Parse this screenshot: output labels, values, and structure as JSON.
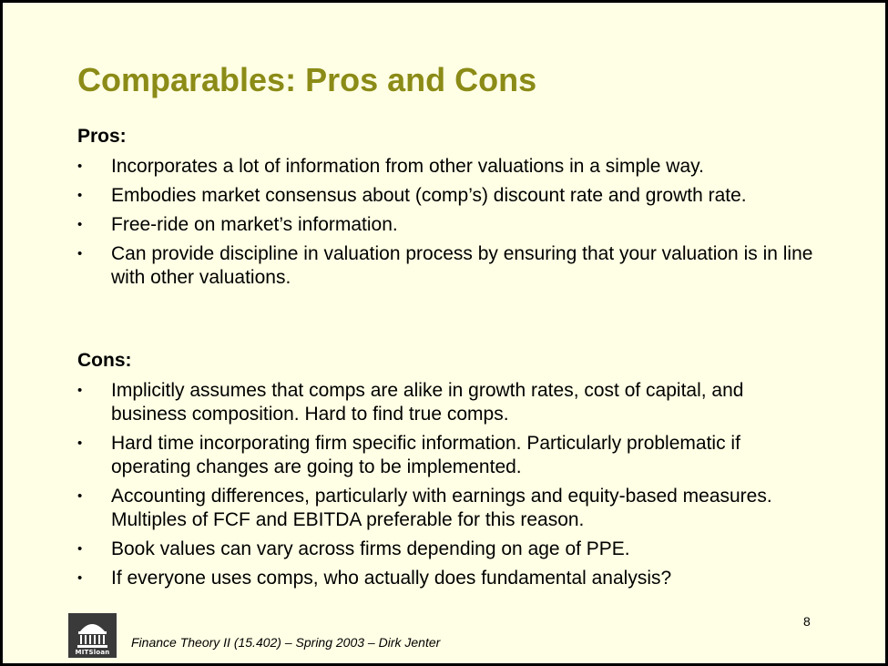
{
  "slide": {
    "title": "Comparables: Pros and Cons",
    "pros": {
      "heading": "Pros:",
      "items": [
        "Incorporates a lot of information from other valuations in a simple way.",
        "Embodies market consensus about (comp’s) discount rate and growth rate.",
        "Free-ride on market’s information.",
        "Can provide discipline in valuation process by ensuring that your valuation is in line with other valuations."
      ]
    },
    "cons": {
      "heading": "Cons:",
      "items": [
        "Implicitly assumes that comps are alike in growth rates, cost of capital, and business composition. Hard to find true comps.",
        "Hard time incorporating firm specific information. Particularly problematic if operating changes are going to be implemented.",
        "Accounting differences, particularly with earnings and equity-based measures.  Multiples of FCF and EBITDA preferable for this reason.",
        "Book values can vary across firms depending on age of PPE.",
        "If everyone uses comps, who actually does fundamental analysis?"
      ]
    },
    "bullet_symbol": "•",
    "page_number": "8",
    "footer": "Finance Theory II (15.402) – Spring 2003 – Dirk Jenter",
    "logo": {
      "icon": "mit-sloan-dome-logo",
      "text": "MITSloan"
    },
    "colors": {
      "title": "#8b8b17",
      "background": "#ffffe5",
      "border": "#000000"
    }
  }
}
